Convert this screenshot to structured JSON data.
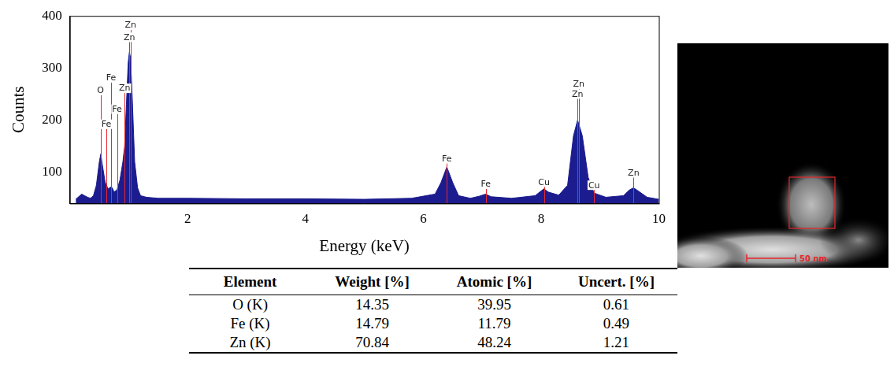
{
  "chart_data": {
    "type": "area",
    "x_label": "Energy (keV)",
    "y_label": "Counts",
    "x": [
      0.1,
      0.2,
      0.25,
      0.3,
      0.35,
      0.4,
      0.45,
      0.5,
      0.525,
      0.55,
      0.6,
      0.65,
      0.7,
      0.72,
      0.75,
      0.8,
      0.85,
      0.9,
      0.93,
      0.96,
      0.99,
      1.01,
      1.03,
      1.06,
      1.1,
      1.15,
      1.2,
      1.3,
      1.5,
      2,
      3,
      4,
      5,
      5.8,
      6.2,
      6.3,
      6.4,
      6.5,
      6.6,
      6.8,
      6.95,
      7.06,
      7.15,
      7.5,
      7.9,
      8.0,
      8.05,
      8.12,
      8.3,
      8.45,
      8.55,
      8.62,
      8.7,
      8.8,
      8.9,
      9.1,
      9.4,
      9.5,
      9.57,
      9.65,
      9.8,
      10
    ],
    "values": [
      48,
      58,
      55,
      52,
      50,
      55,
      75,
      120,
      135,
      115,
      80,
      68,
      72,
      70,
      62,
      66,
      85,
      120,
      150,
      230,
      310,
      330,
      320,
      240,
      120,
      70,
      55,
      52,
      50,
      50,
      49,
      49,
      48,
      50,
      58,
      80,
      110,
      80,
      55,
      50,
      54,
      58,
      53,
      50,
      55,
      64,
      68,
      62,
      56,
      75,
      170,
      200,
      170,
      90,
      60,
      52,
      55,
      66,
      70,
      64,
      52,
      48
    ],
    "color": "#1c1c8f",
    "xlim": [
      0,
      10
    ],
    "xticks": [
      2,
      4,
      6,
      8,
      10
    ],
    "ylim": [
      40,
      400
    ],
    "yticks": [
      100,
      200,
      300,
      400
    ],
    "grid": false,
    "annotations": [
      {
        "label": "O",
        "x": 0.52,
        "y": 248
      },
      {
        "label": "Fe",
        "x": 0.7,
        "y": 272
      },
      {
        "label": "Fe",
        "x": 0.8,
        "y": 212
      },
      {
        "label": "Fe",
        "x": 0.62,
        "y": 183
      },
      {
        "label": "Zn",
        "x": 0.93,
        "y": 252
      },
      {
        "label": "Zn",
        "x": 1.01,
        "y": 350
      },
      {
        "label": "Zn",
        "x": 1.03,
        "y": 373
      },
      {
        "label": "Fe",
        "x": 6.4,
        "y": 117
      },
      {
        "label": "Fe",
        "x": 7.06,
        "y": 68
      },
      {
        "label": "Cu",
        "x": 8.05,
        "y": 72
      },
      {
        "label": "Cu",
        "x": 8.9,
        "y": 66
      },
      {
        "label": "Zn",
        "x": 8.62,
        "y": 241
      },
      {
        "label": "Zn",
        "x": 8.64,
        "y": 260
      },
      {
        "label": "Zn",
        "x": 9.57,
        "y": 90
      }
    ]
  },
  "image": {
    "scale_bar": "50 nm"
  },
  "table": {
    "header": [
      "Element",
      "Weight [%]",
      "Atomic [%]",
      "Uncert. [%]"
    ],
    "rows": [
      [
        "O (K)",
        14.35,
        39.95,
        0.61
      ],
      [
        "Fe (K)",
        14.79,
        11.79,
        0.49
      ],
      [
        "Zn (K)",
        70.84,
        48.24,
        1.21
      ]
    ]
  }
}
